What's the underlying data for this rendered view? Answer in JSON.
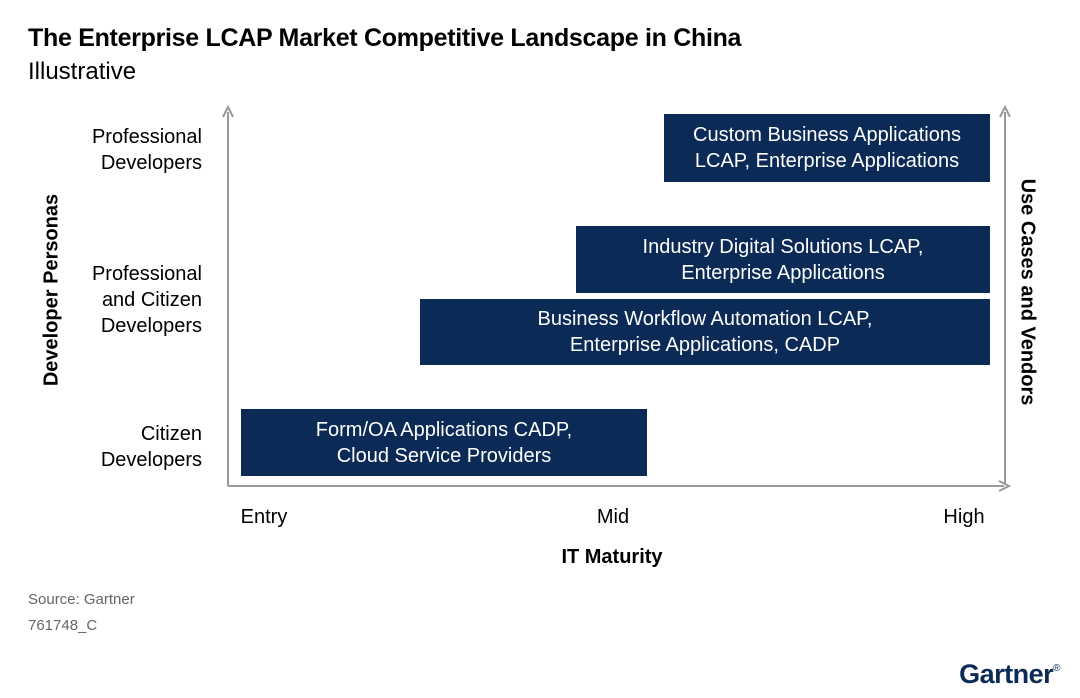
{
  "title": "The Enterprise LCAP Market Competitive Landscape in China",
  "subtitle": "Illustrative",
  "y_axis": {
    "title": "Developer Personas",
    "levels": [
      [
        "Professional",
        "Developers"
      ],
      [
        "Professional",
        "and Citizen",
        "Developers"
      ],
      [
        "Citizen",
        "Developers"
      ]
    ]
  },
  "x_axis": {
    "title": "IT Maturity",
    "levels": [
      "Entry",
      "Mid",
      "High"
    ]
  },
  "right_axis": {
    "title": "Use Cases and Vendors"
  },
  "boxes": [
    {
      "lines": [
        "Custom Business Applications",
        "LCAP, Enterprise Applications"
      ],
      "persona": "Professional Developers",
      "maturity_from": "Mid",
      "maturity_to": "High"
    },
    {
      "lines": [
        "Industry Digital Solutions LCAP,",
        "Enterprise Applications"
      ],
      "persona": "Professional and Citizen Developers",
      "maturity_from": "Mid",
      "maturity_to": "High"
    },
    {
      "lines": [
        "Business Workflow Automation LCAP,",
        "Enterprise Applications, CADP"
      ],
      "persona": "Professional and Citizen Developers",
      "maturity_from": "Entry",
      "maturity_to": "High"
    },
    {
      "lines": [
        "Form/OA Applications CADP,",
        "Cloud Service Providers"
      ],
      "persona": "Citizen Developers",
      "maturity_from": "Entry",
      "maturity_to": "Mid"
    }
  ],
  "footer": {
    "source": "Source: Gartner",
    "code": "761748_C",
    "logo": "Gartner",
    "logo_mark": "®"
  },
  "colors": {
    "box": "#0b2a55",
    "axis": "#999999",
    "footer_text": "#666666"
  }
}
